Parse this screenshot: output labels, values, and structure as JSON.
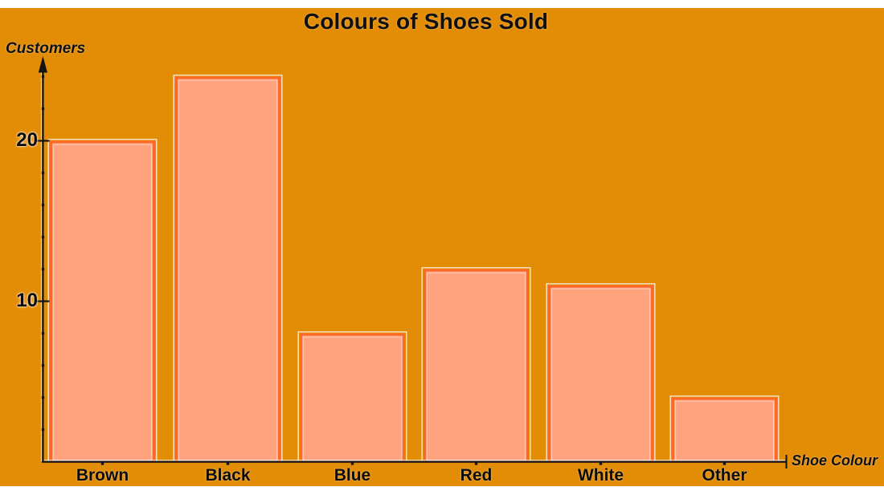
{
  "chart_data": {
    "type": "bar",
    "title": "Colours of Shoes Sold",
    "xlabel": "Shoe Colour",
    "ylabel": "Customers",
    "categories": [
      "Brown",
      "Black",
      "Blue",
      "Red",
      "White",
      "Other"
    ],
    "values": [
      20,
      24,
      8,
      12,
      11,
      4
    ],
    "yticks": [
      10,
      20
    ],
    "minor_tick_step": 2,
    "ylim": [
      0,
      25
    ],
    "grid": false,
    "legend": false,
    "colors": {
      "canvas_background": "#e38c05",
      "bar_fill": "#ffa37f",
      "bar_border": "#ff6826",
      "bar_outer_highlight": "rgba(255,255,255,0.75)",
      "bar_inner_highlight": "rgba(255,255,255,0.4)",
      "axis": "#141414",
      "axis_highlight": "rgba(255,255,255,0.7)",
      "text": "#0b0b0b"
    }
  }
}
